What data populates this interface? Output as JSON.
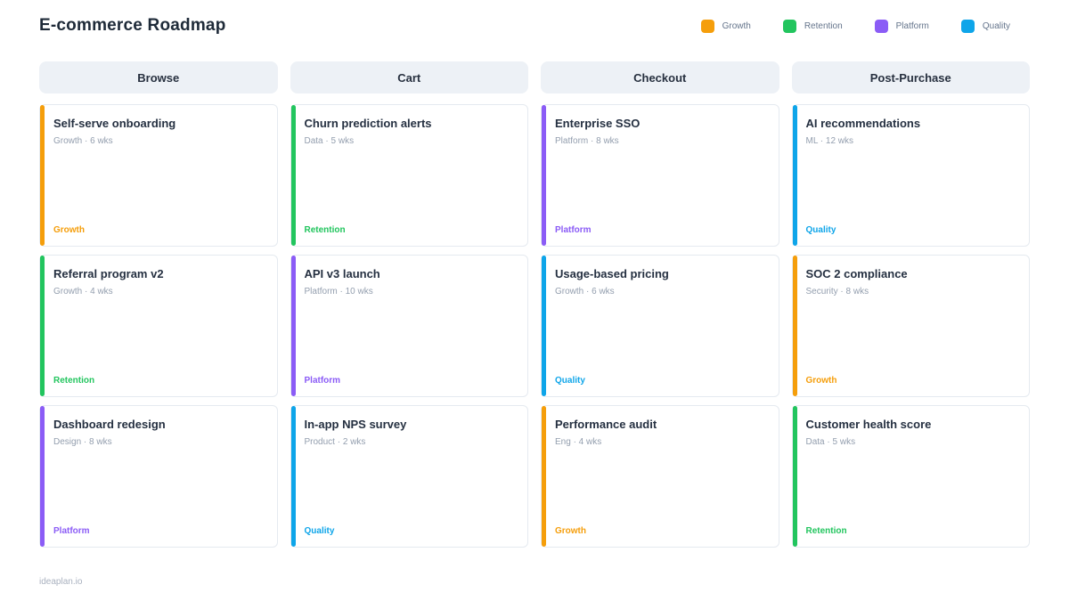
{
  "page": {
    "title": "E-commerce Roadmap",
    "footer": "ideaplan.io"
  },
  "legend": [
    {
      "label": "Growth",
      "color": "#F59E0B"
    },
    {
      "label": "Retention",
      "color": "#22C55E"
    },
    {
      "label": "Platform",
      "color": "#8B5CF6"
    },
    {
      "label": "Quality",
      "color": "#0EA5E9"
    }
  ],
  "columns": [
    {
      "header": "Browse",
      "cards": [
        {
          "title": "Self-serve onboarding",
          "meta": "Growth · 6 wks",
          "tag": "Growth",
          "color": "#F59E0B"
        },
        {
          "title": "Referral program v2",
          "meta": "Growth · 4 wks",
          "tag": "Retention",
          "color": "#22C55E"
        },
        {
          "title": "Dashboard redesign",
          "meta": "Design · 8 wks",
          "tag": "Platform",
          "color": "#8B5CF6"
        }
      ]
    },
    {
      "header": "Cart",
      "cards": [
        {
          "title": "Churn prediction alerts",
          "meta": "Data · 5 wks",
          "tag": "Retention",
          "color": "#22C55E"
        },
        {
          "title": "API v3 launch",
          "meta": "Platform · 10 wks",
          "tag": "Platform",
          "color": "#8B5CF6"
        },
        {
          "title": "In-app NPS survey",
          "meta": "Product · 2 wks",
          "tag": "Quality",
          "color": "#0EA5E9"
        }
      ]
    },
    {
      "header": "Checkout",
      "cards": [
        {
          "title": "Enterprise SSO",
          "meta": "Platform · 8 wks",
          "tag": "Platform",
          "color": "#8B5CF6"
        },
        {
          "title": "Usage-based pricing",
          "meta": "Growth · 6 wks",
          "tag": "Quality",
          "color": "#0EA5E9"
        },
        {
          "title": "Performance audit",
          "meta": "Eng · 4 wks",
          "tag": "Growth",
          "color": "#F59E0B"
        }
      ]
    },
    {
      "header": "Post-Purchase",
      "cards": [
        {
          "title": "AI recommendations",
          "meta": "ML · 12 wks",
          "tag": "Quality",
          "color": "#0EA5E9"
        },
        {
          "title": "SOC 2 compliance",
          "meta": "Security · 8 wks",
          "tag": "Growth",
          "color": "#F59E0B"
        },
        {
          "title": "Customer health score",
          "meta": "Data · 5 wks",
          "tag": "Retention",
          "color": "#22C55E"
        }
      ]
    }
  ]
}
